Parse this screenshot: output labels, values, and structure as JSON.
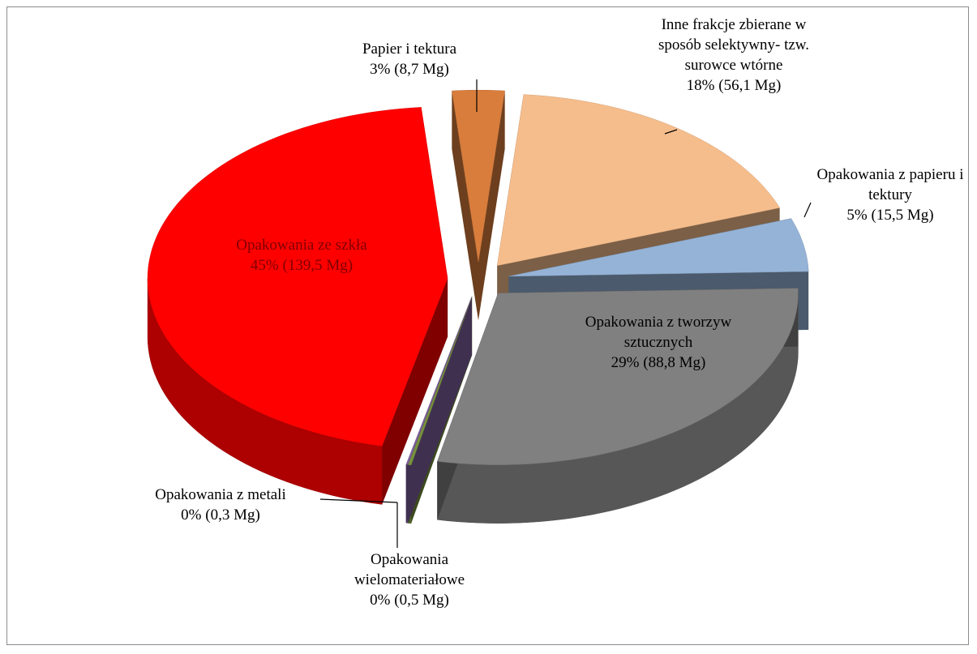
{
  "chart_data": {
    "type": "pie",
    "categories": [
      "Papier i tektura",
      "Inne frakcje zbierane w sposób selektywny- tzw. surowce wtórne",
      "Opakowania z papieru i tektury",
      "Opakowania z tworzyw sztucznych",
      "Opakowania wielomateriałowe",
      "Opakowania z metali",
      "Opakowania ze szkła"
    ],
    "values": [
      8.7,
      56.1,
      15.5,
      88.8,
      0.5,
      0.3,
      139.5
    ],
    "value_labels": [
      "3% (8,7 Mg)",
      "18% (56,1 Mg)",
      "5% (15,5 Mg)",
      "29% (88,8 Mg)",
      "0% (0,5 Mg)",
      "0% (0,3 Mg)",
      "45% (139,5 Mg)"
    ],
    "colors": [
      "#d97d3c",
      "#f6bd8c",
      "#95b3d7",
      "#808080",
      "#77933c",
      "#7f60a0",
      "#ff0000"
    ]
  }
}
